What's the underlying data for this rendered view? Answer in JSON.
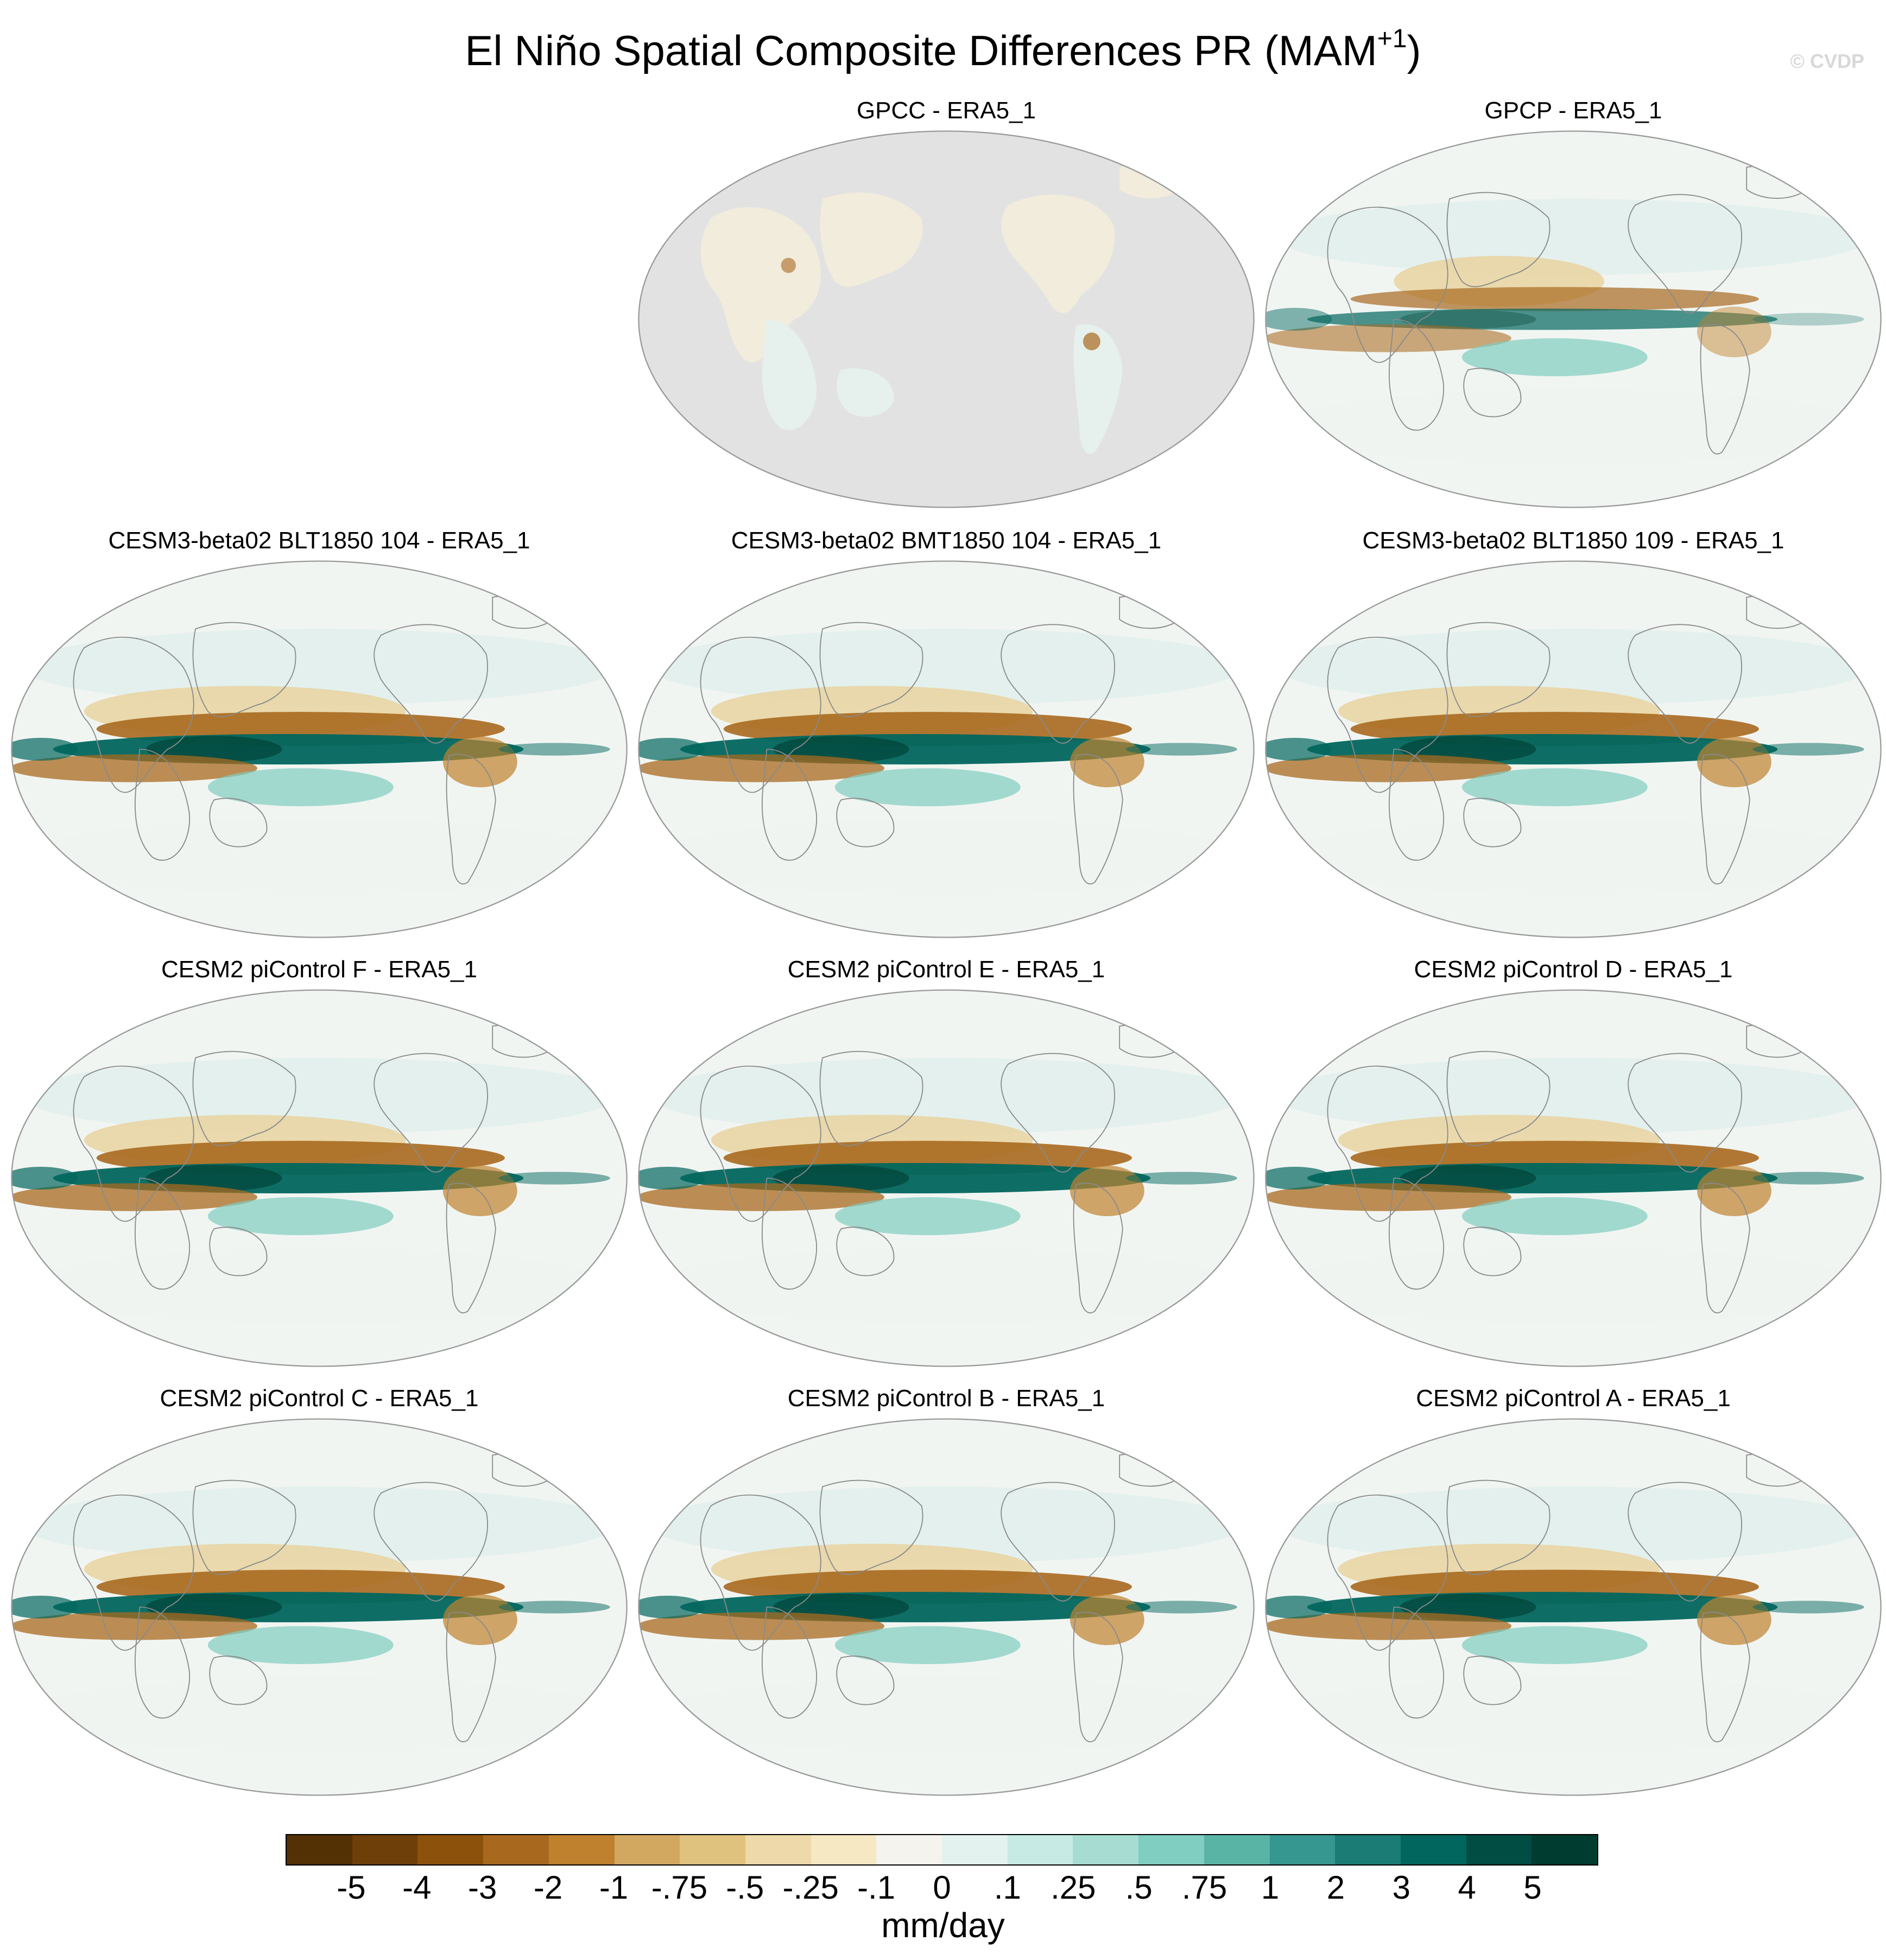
{
  "figure": {
    "title": "El Niño Spatial Composite Differences PR (MAM",
    "title_sup": "+1",
    "title_close": ")",
    "watermark": "© CVDP"
  },
  "chart_data": {
    "type": "heatmap",
    "projection": "robinson",
    "variable": "PR",
    "season": "MAM+1",
    "panels": [
      {
        "id": "gpcc",
        "label": "GPCC - ERA5_1",
        "land_only": true,
        "pattern": "weak"
      },
      {
        "id": "gpcp",
        "label": "GPCP - ERA5_1",
        "land_only": false,
        "pattern": "moderate"
      },
      {
        "id": "blt104",
        "label": "CESM3-beta02 BLT1850 104 - ERA5_1",
        "land_only": false,
        "pattern": "strong"
      },
      {
        "id": "bmt104",
        "label": "CESM3-beta02 BMT1850 104 - ERA5_1",
        "land_only": false,
        "pattern": "strong"
      },
      {
        "id": "blt109",
        "label": "CESM3-beta02 BLT1850 109 - ERA5_1",
        "land_only": false,
        "pattern": "strong"
      },
      {
        "id": "picF",
        "label": "CESM2 piControl F - ERA5_1",
        "land_only": false,
        "pattern": "strong"
      },
      {
        "id": "picE",
        "label": "CESM2 piControl E - ERA5_1",
        "land_only": false,
        "pattern": "strong"
      },
      {
        "id": "picD",
        "label": "CESM2 piControl D - ERA5_1",
        "land_only": false,
        "pattern": "strong"
      },
      {
        "id": "picC",
        "label": "CESM2 piControl C - ERA5_1",
        "land_only": false,
        "pattern": "strong"
      },
      {
        "id": "picB",
        "label": "CESM2 piControl B - ERA5_1",
        "land_only": false,
        "pattern": "strong"
      },
      {
        "id": "picA",
        "label": "CESM2 piControl A - ERA5_1",
        "land_only": false,
        "pattern": "strong"
      }
    ],
    "colorbar": {
      "units": "mm/day",
      "tick_labels": [
        "-5",
        "-4",
        "-3",
        "-2",
        "-1",
        "-.75",
        "-.5",
        "-.25",
        "-.1",
        "0",
        ".1",
        ".25",
        ".5",
        ".75",
        "1",
        "2",
        "3",
        "4",
        "5"
      ],
      "colors": [
        "#543005",
        "#6f3f09",
        "#8c510a",
        "#a8691f",
        "#bf812d",
        "#d2a75f",
        "#dfc27d",
        "#edd9a9",
        "#f6e8c3",
        "#f5f3ee",
        "#e3f1ef",
        "#c7eae5",
        "#a7dcd2",
        "#80cdc1",
        "#5ab4a5",
        "#35978f",
        "#1a7c74",
        "#01665e",
        "#014c43",
        "#003c30"
      ]
    },
    "annotations": {
      "dry_brown": "#a8691f",
      "wet_teal": "#01665e",
      "ocean_neutral": "#f1f5f2",
      "missing_gray": "#e2e2e2",
      "coastline": "#8a8a8a"
    }
  }
}
